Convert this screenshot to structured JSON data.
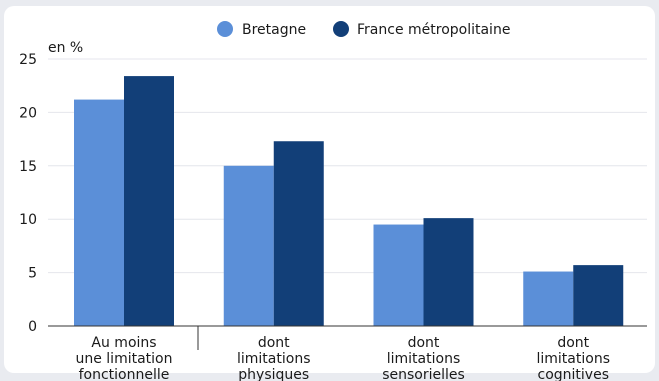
{
  "chart_data": {
    "type": "bar",
    "ylabel": "en %",
    "ylim": [
      0,
      25
    ],
    "yticks": [
      "0",
      "5",
      "10",
      "15",
      "20",
      "25"
    ],
    "categories": [
      [
        "Au moins",
        "une limitation",
        "fonctionnelle"
      ],
      [
        "dont",
        "limitations",
        "physiques"
      ],
      [
        "dont",
        "limitations",
        "sensorielles"
      ],
      [
        "dont",
        "limitations",
        "cognitives"
      ]
    ],
    "series": [
      {
        "name": "Bretagne",
        "color": "#5b8fd8",
        "values": [
          21.2,
          15.0,
          9.5,
          5.1
        ]
      },
      {
        "name": "France métropolitaine",
        "color": "#123f78",
        "values": [
          23.4,
          17.3,
          10.1,
          5.7
        ]
      }
    ],
    "grid": true,
    "legend": "top-center"
  }
}
